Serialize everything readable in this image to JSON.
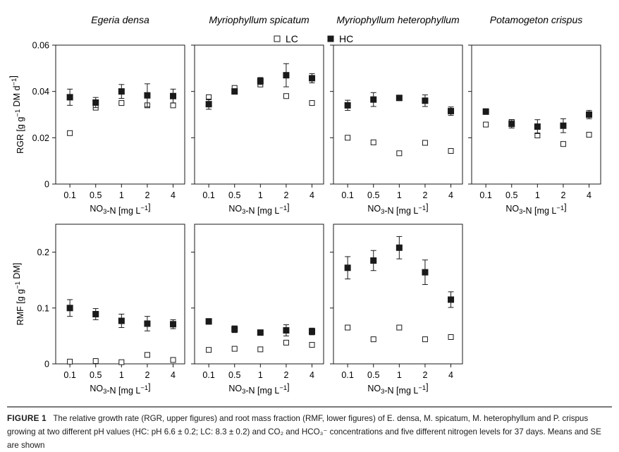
{
  "legend": {
    "lc_label": "LC",
    "hc_label": "HC"
  },
  "chart_data": [
    {
      "type": "scatter",
      "panel": "RGR",
      "title": "Egeria densa",
      "ylabel": "RGR [g g⁻¹ DM d⁻¹]",
      "xlabel": "NO₃-N [mg L⁻¹]",
      "categories": [
        "0.1",
        "0.5",
        "1",
        "2",
        "4"
      ],
      "ylim": [
        0,
        0.06
      ],
      "yticks": [
        "0",
        "0.02",
        "0.04",
        "0.06"
      ],
      "series": [
        {
          "name": "LC",
          "values": [
            0.022,
            0.033,
            0.035,
            0.034,
            0.034
          ],
          "se": [
            0,
            0,
            0,
            0,
            0
          ]
        },
        {
          "name": "HC",
          "values": [
            0.0375,
            0.0352,
            0.04,
            0.0383,
            0.038
          ],
          "se": [
            0.0035,
            0.0022,
            0.003,
            0.005,
            0.003
          ]
        }
      ]
    },
    {
      "type": "scatter",
      "panel": "RGR",
      "title": "Myriophyllum spicatum",
      "ylabel": "",
      "xlabel": "NO₃-N [mg L⁻¹]",
      "categories": [
        "0.1",
        "0.5",
        "1",
        "2",
        "4"
      ],
      "ylim": [
        0,
        0.06
      ],
      "series": [
        {
          "name": "LC",
          "values": [
            0.0375,
            0.0415,
            0.043,
            0.038,
            0.035
          ],
          "se": [
            0,
            0,
            0,
            0,
            0
          ]
        },
        {
          "name": "HC",
          "values": [
            0.0345,
            0.04,
            0.0445,
            0.047,
            0.0457
          ],
          "se": [
            0.0022,
            0.001,
            0.0015,
            0.005,
            0.002
          ]
        }
      ]
    },
    {
      "type": "scatter",
      "panel": "RGR",
      "title": "Myriophyllum heterophyllum",
      "ylabel": "",
      "xlabel": "NO₃-N [mg L⁻¹]",
      "categories": [
        "0.1",
        "0.5",
        "1",
        "2",
        "4"
      ],
      "ylim": [
        0,
        0.06
      ],
      "series": [
        {
          "name": "LC",
          "values": [
            0.02,
            0.018,
            0.0133,
            0.0178,
            0.0143
          ],
          "se": [
            0,
            0,
            0,
            0,
            0
          ]
        },
        {
          "name": "HC",
          "values": [
            0.034,
            0.0365,
            0.0372,
            0.036,
            0.0315
          ],
          "se": [
            0.0022,
            0.003,
            0.0005,
            0.0025,
            0.0018
          ]
        }
      ]
    },
    {
      "type": "scatter",
      "panel": "RGR",
      "title": "Potamogeton crispus",
      "ylabel": "",
      "xlabel": "NO₃-N [mg L⁻¹]",
      "categories": [
        "0.1",
        "0.5",
        "1",
        "2",
        "4"
      ],
      "ylim": [
        0,
        0.06
      ],
      "series": [
        {
          "name": "LC",
          "values": [
            0.0257,
            0.0268,
            0.021,
            0.0173,
            0.0213
          ],
          "se": [
            0,
            0,
            0,
            0,
            0
          ]
        },
        {
          "name": "HC",
          "values": [
            0.0313,
            0.026,
            0.0248,
            0.0252,
            0.03
          ],
          "se": [
            0.0012,
            0.0018,
            0.003,
            0.003,
            0.0018
          ]
        }
      ]
    },
    {
      "type": "scatter",
      "panel": "RMF",
      "title": "",
      "ylabel": "RMF [g g⁻¹ DM]",
      "xlabel": "NO₃-N [mg L⁻¹]",
      "categories": [
        "0.1",
        "0.5",
        "1",
        "2",
        "4"
      ],
      "ylim": [
        0,
        0.25
      ],
      "yticks": [
        "0",
        "0.1",
        "0.2"
      ],
      "series": [
        {
          "name": "LC",
          "values": [
            0.004,
            0.005,
            0.003,
            0.016,
            0.007
          ],
          "se": [
            0,
            0,
            0,
            0,
            0
          ]
        },
        {
          "name": "HC",
          "values": [
            0.1,
            0.089,
            0.077,
            0.072,
            0.071
          ],
          "se": [
            0.015,
            0.01,
            0.012,
            0.013,
            0.008
          ]
        }
      ]
    },
    {
      "type": "scatter",
      "panel": "RMF",
      "title": "",
      "ylabel": "",
      "xlabel": "NO₃-N [mg L⁻¹]",
      "categories": [
        "0.1",
        "0.5",
        "1",
        "2",
        "4"
      ],
      "ylim": [
        0,
        0.25
      ],
      "series": [
        {
          "name": "LC",
          "values": [
            0.025,
            0.027,
            0.026,
            0.038,
            0.034
          ],
          "se": [
            0,
            0,
            0,
            0,
            0
          ]
        },
        {
          "name": "HC",
          "values": [
            0.076,
            0.062,
            0.056,
            0.06,
            0.058
          ],
          "se": [
            0.005,
            0.006,
            0.003,
            0.01,
            0.006
          ]
        }
      ]
    },
    {
      "type": "scatter",
      "panel": "RMF",
      "title": "",
      "ylabel": "",
      "xlabel": "NO₃-N [mg L⁻¹]",
      "categories": [
        "0.1",
        "0.5",
        "1",
        "2",
        "4"
      ],
      "ylim": [
        0,
        0.25
      ],
      "series": [
        {
          "name": "LC",
          "values": [
            0.065,
            0.044,
            0.065,
            0.044,
            0.048
          ],
          "se": [
            0,
            0,
            0,
            0,
            0
          ]
        },
        {
          "name": "HC",
          "values": [
            0.172,
            0.185,
            0.208,
            0.164,
            0.115
          ],
          "se": [
            0.02,
            0.018,
            0.02,
            0.022,
            0.014
          ]
        }
      ]
    }
  ],
  "caption": {
    "label": "FIGURE 1",
    "text": "The relative growth rate (RGR, upper figures) and root mass fraction (RMF, lower figures) of E. densa, M. spicatum, M. heterophyllum and P. crispus growing at two different pH values (HC: pH 6.6 ± 0.2; LC: 8.3 ± 0.2) and CO₂ and HCO₃⁻ concentrations and five different nitrogen levels for 37 days. Means and SE are shown"
  }
}
